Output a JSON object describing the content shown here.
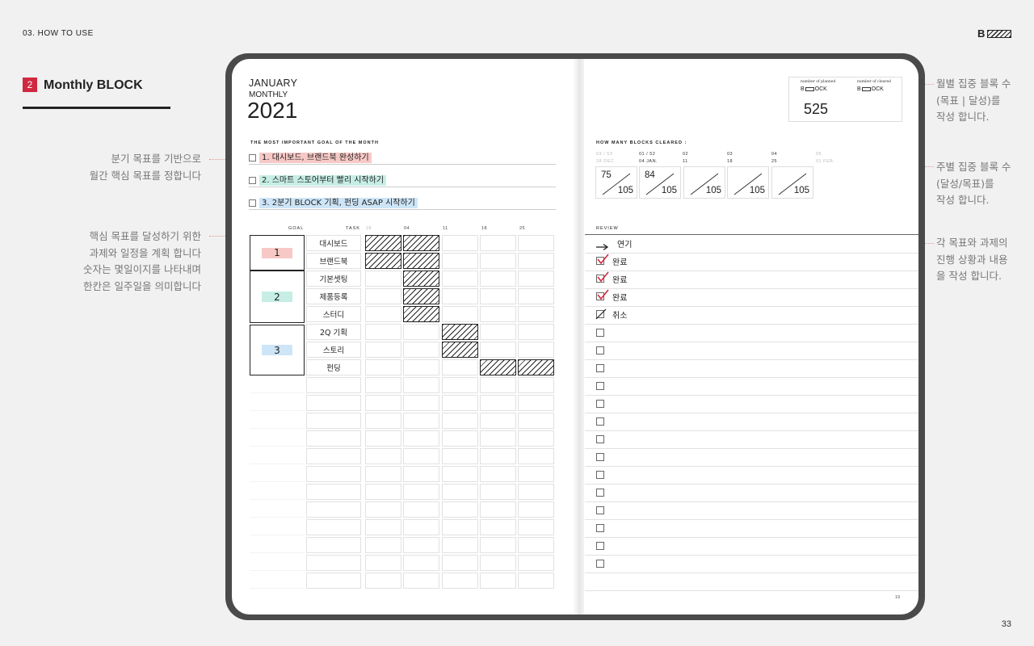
{
  "header": {
    "section_label": "03. HOW TO USE",
    "page_number": "33"
  },
  "title": {
    "number": "2",
    "text": "Monthly BLOCK"
  },
  "notes_left": {
    "note1_lines": [
      "분기 목표를 기반으로",
      "월간 핵심 목표를 정합니다"
    ],
    "note2_lines": [
      "핵심 목표를 달성하기 위한",
      "과제와 일정을 계획 합니다",
      "숫자는 몇일이지를 나타내며",
      "한칸은 일주일을 의미합니다"
    ]
  },
  "notes_right": {
    "note1_lines": [
      "월별 집중 블록 수",
      "(목표 | 달성)를",
      "작성 합니다."
    ],
    "note2_lines": [
      "주별 집중 블록 수",
      "(달성/목표)를",
      "작성 합니다."
    ],
    "note3_lines": [
      "각 목표와 과제의",
      "진행 상황과 내용",
      "을 작성 합니다."
    ]
  },
  "planner": {
    "month": "JANUARY",
    "period": "MONTHLY",
    "year": "2021",
    "goals_heading": "THE MOST IMPORTANT GOAL OF THE MONTH",
    "goals": [
      "1. 대시보드, 브랜드북 완성하기",
      "2. 스마트 스토어부터 빨리 시작하기",
      "3. 2분기 BLOCK 기획, 펀딩 ASAP 시작하기"
    ],
    "table_headers": {
      "goal": "GOAL",
      "task": "TASK",
      "weeks": [
        "28",
        "04",
        "11",
        "18",
        "25"
      ]
    },
    "goal_numbers": [
      "1",
      "2",
      "3"
    ],
    "tasks": [
      "대시보드",
      "브랜드북",
      "기본셋팅",
      "제품등록",
      "스터디",
      "2Q 기획",
      "스토리",
      "펀딩"
    ],
    "block_header": {
      "planned_label": "number of planned",
      "cleared_label": "number of cleared",
      "planned_value": "525"
    },
    "cleared_heading": "HOW MANY BLOCKS CLEARED :",
    "weeks_cleared": [
      {
        "top": "03 / 53",
        "bottom": "28 DEC.",
        "cleared": "75",
        "target": "105"
      },
      {
        "top": "01 / 52",
        "bottom": "04 JAN.",
        "cleared": "84",
        "target": "105"
      },
      {
        "top": "02",
        "bottom": "11",
        "cleared": "",
        "target": "105"
      },
      {
        "top": "03",
        "bottom": "18",
        "cleared": "",
        "target": "105"
      },
      {
        "top": "04",
        "bottom": "25",
        "cleared": "",
        "target": "105"
      },
      {
        "top": "05",
        "bottom": "01 FEB.",
        "cleared": "",
        "target": ""
      }
    ],
    "review_heading": "REVIEW",
    "review_items": [
      {
        "icon": "arrow",
        "text": "연기"
      },
      {
        "icon": "check",
        "text": "완료"
      },
      {
        "icon": "check",
        "text": "완료"
      },
      {
        "icon": "check",
        "text": "완료"
      },
      {
        "icon": "slash",
        "text": "취소"
      }
    ],
    "page_num": "19"
  },
  "colors": {
    "accent_red": "#d0293f",
    "goal1": "#f7c9c6",
    "goal2": "#c6eee4",
    "goal3": "#cde5f7"
  }
}
